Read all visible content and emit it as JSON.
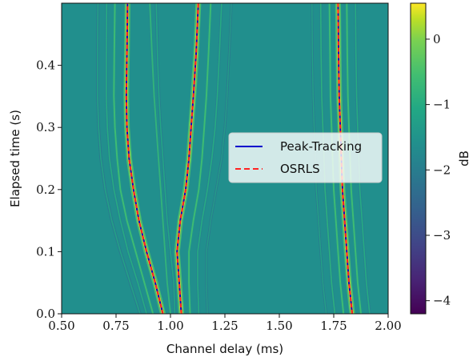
{
  "chart_data": {
    "type": "heatmap",
    "title": "",
    "xlabel": "Channel delay (ms)",
    "ylabel": "Elapsed time (s)",
    "xlim": [
      0.5,
      2.0
    ],
    "ylim": [
      0.0,
      0.5
    ],
    "x_ticks": [
      0.5,
      0.75,
      1.0,
      1.25,
      1.5,
      1.75,
      2.0
    ],
    "x_tick_labels": [
      "0.50",
      "0.75",
      "1.00",
      "1.25",
      "1.50",
      "1.75",
      "2.00"
    ],
    "y_ticks": [
      0.0,
      0.1,
      0.2,
      0.3,
      0.4
    ],
    "y_tick_labels": [
      "0.0",
      "0.1",
      "0.2",
      "0.3",
      "0.4"
    ],
    "colorbar": {
      "label": "dB",
      "colormap": "viridis",
      "range": [
        -4.2,
        0.55
      ],
      "ticks": [
        0,
        -1,
        -2,
        -3,
        -4
      ],
      "tick_labels": [
        "0",
        "−1",
        "−2",
        "−3",
        "−4"
      ]
    },
    "background_level_db": -1.6,
    "legend": {
      "placement": "center-right",
      "entries": [
        "Peak-Tracking",
        "OSRLS"
      ]
    },
    "series": [
      {
        "name": "Peak-Tracking",
        "color": "#0000cc",
        "style": "solid",
        "paths": [
          {
            "x": [
              0.965,
              0.93,
              0.89,
              0.855,
              0.83,
              0.81,
              0.8,
              0.797,
              0.8,
              0.803
            ],
            "y": [
              0.0,
              0.05,
              0.1,
              0.15,
              0.2,
              0.25,
              0.3,
              0.35,
              0.42,
              0.5
            ]
          },
          {
            "x": [
              1.05,
              1.04,
              1.03,
              1.045,
              1.07,
              1.085,
              1.095,
              1.105,
              1.118,
              1.128
            ],
            "y": [
              0.0,
              0.05,
              0.1,
              0.15,
              0.2,
              0.25,
              0.3,
              0.35,
              0.42,
              0.5
            ]
          },
          {
            "x": [
              1.835,
              1.82,
              1.81,
              1.8,
              1.79,
              1.785,
              1.78,
              1.775,
              1.772,
              1.77
            ],
            "y": [
              0.0,
              0.05,
              0.1,
              0.15,
              0.2,
              0.25,
              0.3,
              0.35,
              0.42,
              0.5
            ]
          }
        ]
      },
      {
        "name": "OSRLS",
        "color": "#ff2222",
        "style": "dashed",
        "paths": [
          {
            "x": [
              0.965,
              0.93,
              0.89,
              0.855,
              0.83,
              0.81,
              0.8,
              0.797,
              0.8,
              0.803
            ],
            "y": [
              0.0,
              0.05,
              0.1,
              0.15,
              0.2,
              0.25,
              0.3,
              0.35,
              0.42,
              0.5
            ]
          },
          {
            "x": [
              1.05,
              1.04,
              1.03,
              1.045,
              1.07,
              1.085,
              1.095,
              1.105,
              1.118,
              1.128
            ],
            "y": [
              0.0,
              0.05,
              0.1,
              0.15,
              0.2,
              0.25,
              0.3,
              0.35,
              0.42,
              0.5
            ]
          },
          {
            "x": [
              1.835,
              1.82,
              1.81,
              1.8,
              1.79,
              1.785,
              1.78,
              1.775,
              1.772,
              1.77
            ],
            "y": [
              0.0,
              0.05,
              0.1,
              0.15,
              0.2,
              0.25,
              0.3,
              0.35,
              0.42,
              0.5
            ]
          }
        ]
      }
    ],
    "ridges": [
      {
        "db": 0.5,
        "width": 0.012,
        "x": [
          0.965,
          0.93,
          0.89,
          0.855,
          0.83,
          0.81,
          0.8,
          0.797,
          0.8,
          0.803
        ]
      },
      {
        "db": 0.5,
        "width": 0.012,
        "x": [
          1.05,
          1.04,
          1.03,
          1.045,
          1.07,
          1.085,
          1.095,
          1.105,
          1.118,
          1.128
        ]
      },
      {
        "db": 0.5,
        "width": 0.012,
        "x": [
          1.835,
          1.82,
          1.81,
          1.8,
          1.79,
          1.785,
          1.78,
          1.775,
          1.772,
          1.77
        ]
      },
      {
        "db": -0.6,
        "width": 0.007,
        "x": [
          0.92,
          0.88,
          0.84,
          0.8,
          0.77,
          0.755,
          0.745,
          0.74,
          0.742,
          0.745
        ]
      },
      {
        "db": -1.0,
        "width": 0.006,
        "x": [
          0.89,
          0.85,
          0.805,
          0.77,
          0.74,
          0.72,
          0.71,
          0.705,
          0.705,
          0.707
        ]
      },
      {
        "db": -1.2,
        "width": 0.006,
        "x": [
          0.86,
          0.815,
          0.77,
          0.73,
          0.7,
          0.68,
          0.67,
          0.665,
          0.665,
          0.667
        ]
      },
      {
        "db": -0.8,
        "width": 0.007,
        "x": [
          1.0,
          0.985,
          0.975,
          0.965,
          0.955,
          0.945,
          0.935,
          0.925,
          0.915,
          0.905
        ]
      },
      {
        "db": -1.1,
        "width": 0.006,
        "x": [
          1.02,
          1.015,
          1.0,
          0.985,
          0.975,
          0.965,
          0.955,
          0.947,
          0.94,
          0.935
        ]
      },
      {
        "db": -0.6,
        "width": 0.007,
        "x": [
          1.09,
          1.085,
          1.085,
          1.105,
          1.13,
          1.145,
          1.155,
          1.165,
          1.175,
          1.185
        ]
      },
      {
        "db": -1.0,
        "width": 0.006,
        "x": [
          1.13,
          1.125,
          1.125,
          1.145,
          1.17,
          1.19,
          1.205,
          1.215,
          1.225,
          1.235
        ]
      },
      {
        "db": -1.3,
        "width": 0.005,
        "x": [
          1.17,
          1.165,
          1.165,
          1.185,
          1.21,
          1.235,
          1.25,
          1.26,
          1.27,
          1.28
        ]
      },
      {
        "db": -0.6,
        "width": 0.007,
        "x": [
          1.795,
          1.78,
          1.77,
          1.76,
          1.75,
          1.745,
          1.74,
          1.735,
          1.733,
          1.73
        ]
      },
      {
        "db": -0.9,
        "width": 0.006,
        "x": [
          1.755,
          1.74,
          1.73,
          1.72,
          1.71,
          1.705,
          1.7,
          1.695,
          1.692,
          1.69
        ]
      },
      {
        "db": -1.2,
        "width": 0.005,
        "x": [
          1.715,
          1.7,
          1.69,
          1.68,
          1.67,
          1.665,
          1.66,
          1.655,
          1.652,
          1.65
        ]
      },
      {
        "db": -0.6,
        "width": 0.007,
        "x": [
          1.875,
          1.86,
          1.85,
          1.84,
          1.83,
          1.825,
          1.82,
          1.815,
          1.812,
          1.81
        ]
      },
      {
        "db": -1.0,
        "width": 0.006,
        "x": [
          1.915,
          1.9,
          1.89,
          1.88,
          1.87,
          1.865,
          1.86,
          1.855,
          1.852,
          1.85
        ]
      }
    ],
    "ridge_y": [
      0.0,
      0.05,
      0.1,
      0.15,
      0.2,
      0.25,
      0.3,
      0.35,
      0.42,
      0.5
    ]
  }
}
